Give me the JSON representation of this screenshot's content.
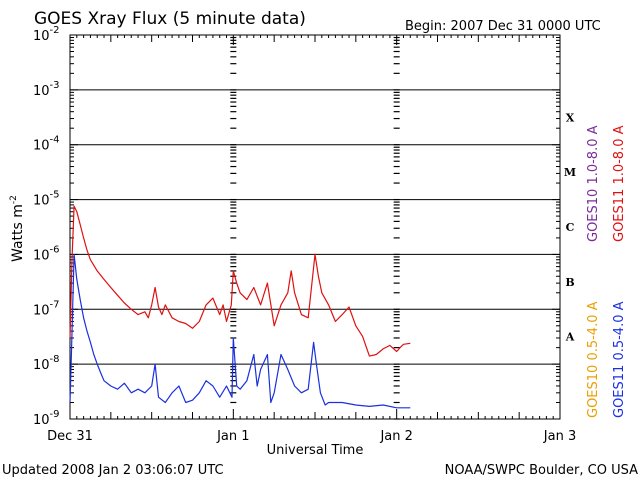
{
  "chart_data": {
    "type": "line",
    "title": "GOES Xray Flux (5 minute data)",
    "begin_label": "Begin:  2007 Dec 31 0000 UTC",
    "xlabel": "Universal Time",
    "ylabel": "Watts m",
    "ylabel_sup": "-2",
    "yscale": "log",
    "x_unit": "hours since Begin",
    "xlim": [
      0,
      72
    ],
    "x_ticks": [
      {
        "x": 0,
        "label": "Dec 31"
      },
      {
        "x": 24,
        "label": "Jan 1"
      },
      {
        "x": 48,
        "label": "Jan 2"
      },
      {
        "x": 72,
        "label": "Jan 3"
      }
    ],
    "ylim_exp": [
      -9,
      -2
    ],
    "y_ticks": [
      {
        "exp": -2,
        "label": "-2"
      },
      {
        "exp": -3,
        "label": "-3"
      },
      {
        "exp": -4,
        "label": "-4"
      },
      {
        "exp": -5,
        "label": "-5"
      },
      {
        "exp": -6,
        "label": "-6"
      },
      {
        "exp": -7,
        "label": "-7"
      },
      {
        "exp": -8,
        "label": "-8"
      },
      {
        "exp": -9,
        "label": "-9"
      }
    ],
    "flare_classes": [
      {
        "label": "X",
        "exp": -3.5
      },
      {
        "label": "M",
        "exp": -4.5
      },
      {
        "label": "C",
        "exp": -5.5
      },
      {
        "label": "B",
        "exp": -6.5
      },
      {
        "label": "A",
        "exp": -7.5
      }
    ],
    "legend": [
      {
        "text": "GOES10 1.0-8.0 A",
        "color": "#7a2a9a"
      },
      {
        "text": "GOES11 1.0-8.0 A",
        "color": "#e01010"
      },
      {
        "text": "GOES10 0.5-4.0 A",
        "color": "#e8a000"
      },
      {
        "text": "GOES11 0.5-4.0 A",
        "color": "#1a30e0"
      }
    ],
    "series": [
      {
        "name": "GOES11 1.0-8.0 A",
        "color": "#e01010",
        "points": [
          [
            0.0,
            3e-08
          ],
          [
            0.3,
            8e-07
          ],
          [
            0.6,
            7.6e-06
          ],
          [
            1.0,
            6e-06
          ],
          [
            1.5,
            3.5e-06
          ],
          [
            2.0,
            2e-06
          ],
          [
            2.5,
            1.2e-06
          ],
          [
            3.0,
            8e-07
          ],
          [
            4.0,
            5e-07
          ],
          [
            5.0,
            3.5e-07
          ],
          [
            6.0,
            2.5e-07
          ],
          [
            7.0,
            1.8e-07
          ],
          [
            8.0,
            1.3e-07
          ],
          [
            9.0,
            1e-07
          ],
          [
            10.0,
            8e-08
          ],
          [
            11.0,
            9e-08
          ],
          [
            11.5,
            7e-08
          ],
          [
            12.0,
            1.2e-07
          ],
          [
            12.5,
            2.5e-07
          ],
          [
            13.0,
            1.1e-07
          ],
          [
            13.5,
            8e-08
          ],
          [
            14.0,
            1.2e-07
          ],
          [
            15.0,
            7e-08
          ],
          [
            16.0,
            6e-08
          ],
          [
            17.0,
            5.5e-08
          ],
          [
            18.0,
            4.5e-08
          ],
          [
            19.0,
            6e-08
          ],
          [
            20.0,
            1.2e-07
          ],
          [
            21.0,
            1.6e-07
          ],
          [
            22.0,
            8e-08
          ],
          [
            22.5,
            1.2e-07
          ],
          [
            23.0,
            6e-08
          ],
          [
            23.7,
            1.2e-07
          ],
          [
            24.0,
            5e-07
          ],
          [
            24.5,
            3e-07
          ],
          [
            25.0,
            2e-07
          ],
          [
            26.0,
            1.5e-07
          ],
          [
            27.0,
            2.5e-07
          ],
          [
            28.0,
            1.2e-07
          ],
          [
            29.0,
            3e-07
          ],
          [
            30.0,
            5e-08
          ],
          [
            31.0,
            1.2e-07
          ],
          [
            32.0,
            2e-07
          ],
          [
            32.5,
            5e-07
          ],
          [
            33.0,
            2e-07
          ],
          [
            34.0,
            8e-08
          ],
          [
            35.0,
            7e-08
          ],
          [
            36.0,
            1e-06
          ],
          [
            36.5,
            4e-07
          ],
          [
            37.0,
            2e-07
          ],
          [
            38.0,
            1.2e-07
          ],
          [
            39.0,
            6e-08
          ],
          [
            40.0,
            8e-08
          ],
          [
            41.0,
            1.1e-07
          ],
          [
            42.0,
            5e-08
          ],
          [
            43.0,
            3.2e-08
          ],
          [
            44.0,
            1.4e-08
          ],
          [
            45.0,
            1.5e-08
          ],
          [
            46.0,
            1.9e-08
          ],
          [
            47.0,
            2.2e-08
          ],
          [
            48.0,
            1.7e-08
          ],
          [
            48.5,
            2e-08
          ],
          [
            49.0,
            2.3e-08
          ],
          [
            50.0,
            2.4e-08
          ]
        ]
      },
      {
        "name": "GOES11 0.5-4.0 A",
        "color": "#1a30e0",
        "points": [
          [
            0.0,
            2e-09
          ],
          [
            0.2,
            1.5e-08
          ],
          [
            0.6,
            1e-06
          ],
          [
            1.0,
            3.5e-07
          ],
          [
            1.5,
            1.5e-07
          ],
          [
            2.0,
            7e-08
          ],
          [
            2.5,
            4e-08
          ],
          [
            3.0,
            2.5e-08
          ],
          [
            3.5,
            1.5e-08
          ],
          [
            4.0,
            1e-08
          ],
          [
            4.5,
            7e-09
          ],
          [
            5.0,
            5e-09
          ],
          [
            6.0,
            4e-09
          ],
          [
            7.0,
            3.5e-09
          ],
          [
            8.0,
            4.5e-09
          ],
          [
            9.0,
            3e-09
          ],
          [
            10.0,
            3.5e-09
          ],
          [
            11.0,
            3e-09
          ],
          [
            12.0,
            4e-09
          ],
          [
            12.5,
            1e-08
          ],
          [
            13.0,
            2.5e-09
          ],
          [
            14.0,
            2e-09
          ],
          [
            15.0,
            3e-09
          ],
          [
            16.0,
            4e-09
          ],
          [
            17.0,
            2e-09
          ],
          [
            18.0,
            2.2e-09
          ],
          [
            19.0,
            3e-09
          ],
          [
            20.0,
            5e-09
          ],
          [
            21.0,
            4e-09
          ],
          [
            22.0,
            2.5e-09
          ],
          [
            23.0,
            4e-09
          ],
          [
            23.8,
            2.5e-09
          ],
          [
            24.0,
            3e-08
          ],
          [
            24.5,
            4e-09
          ],
          [
            25.0,
            3.5e-09
          ],
          [
            26.0,
            5e-09
          ],
          [
            27.0,
            1.5e-08
          ],
          [
            27.5,
            4e-09
          ],
          [
            28.0,
            8e-09
          ],
          [
            29.0,
            1.5e-08
          ],
          [
            29.5,
            2e-09
          ],
          [
            30.0,
            3e-09
          ],
          [
            31.0,
            1.5e-08
          ],
          [
            32.0,
            8e-09
          ],
          [
            33.0,
            4e-09
          ],
          [
            34.0,
            3e-09
          ],
          [
            35.0,
            3.5e-09
          ],
          [
            35.8,
            2.5e-08
          ],
          [
            36.2,
            1e-08
          ],
          [
            36.8,
            3e-09
          ],
          [
            37.5,
            1.8e-09
          ],
          [
            38.0,
            2e-09
          ],
          [
            40.0,
            2e-09
          ],
          [
            42.0,
            1.8e-09
          ],
          [
            44.0,
            1.7e-09
          ],
          [
            46.0,
            1.8e-09
          ],
          [
            48.0,
            1.6e-09
          ],
          [
            50.0,
            1.6e-09
          ]
        ]
      }
    ]
  },
  "footer": {
    "updated": "Updated 2008 Jan  2 03:06:07 UTC",
    "source": "NOAA/SWPC Boulder, CO USA"
  }
}
